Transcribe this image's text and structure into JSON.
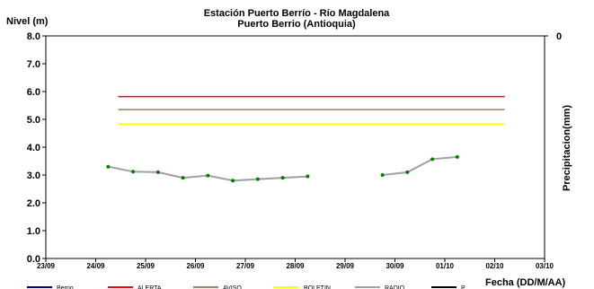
{
  "chart_data": {
    "type": "line",
    "title": "Estación Puerto Berrío - Río Magdalena",
    "subtitle": "Puerto Berrio (Antioquia)",
    "ylabel": "Nivel (m)",
    "y2label": "Precipitacion(mm)",
    "xlabel": "Fecha (DD/M/AA)",
    "ylim": [
      0,
      8
    ],
    "yticks": [
      "0.0",
      "1.0",
      "2.0",
      "3.0",
      "4.0",
      "5.0",
      "6.0",
      "7.0",
      "8.0"
    ],
    "y2ticks": [
      "0"
    ],
    "x_ticks": [
      "23/09",
      "24/09",
      "25/09",
      "26/09",
      "27/09",
      "28/09",
      "29/09",
      "30/09",
      "01/10",
      "02/10",
      "03/10"
    ],
    "grid": false,
    "legend_position": "bottom",
    "thresholds": [
      {
        "name": "ALERTA",
        "value": 5.82,
        "x_start": 24.45,
        "x_end": 32.2,
        "color": "#ff0000"
      },
      {
        "name": "AVISO",
        "value": 5.35,
        "x_start": 24.45,
        "x_end": 32.2,
        "color": "#a08060"
      },
      {
        "name": "BOLETIN",
        "value": 4.83,
        "x_start": 24.45,
        "x_end": 32.2,
        "color": "#ffff00"
      }
    ],
    "series": [
      {
        "name": "RADIO",
        "color": "#a0a0a0",
        "marker_color": "#008000",
        "segments": [
          [
            [
              24.25,
              3.3
            ],
            [
              24.75,
              3.12
            ],
            [
              25.25,
              3.1
            ],
            [
              25.75,
              2.9
            ],
            [
              26.25,
              2.98
            ],
            [
              26.75,
              2.8
            ],
            [
              27.25,
              2.85
            ],
            [
              27.75,
              2.9
            ],
            [
              28.25,
              2.95
            ]
          ],
          [
            [
              29.75,
              3.0
            ],
            [
              30.25,
              3.1
            ],
            [
              30.75,
              3.57
            ],
            [
              31.25,
              3.65
            ]
          ]
        ]
      }
    ],
    "legend": [
      {
        "label": "Berrio",
        "color": "#000080"
      },
      {
        "label": "ALERTA",
        "color": "#ff0000"
      },
      {
        "label": "AVISO",
        "color": "#a08060"
      },
      {
        "label": "BOLETIN",
        "color": "#ffff00"
      },
      {
        "label": "RADIO",
        "color": "#a0a0a0"
      },
      {
        "label": "P",
        "color": "#000000"
      }
    ]
  }
}
